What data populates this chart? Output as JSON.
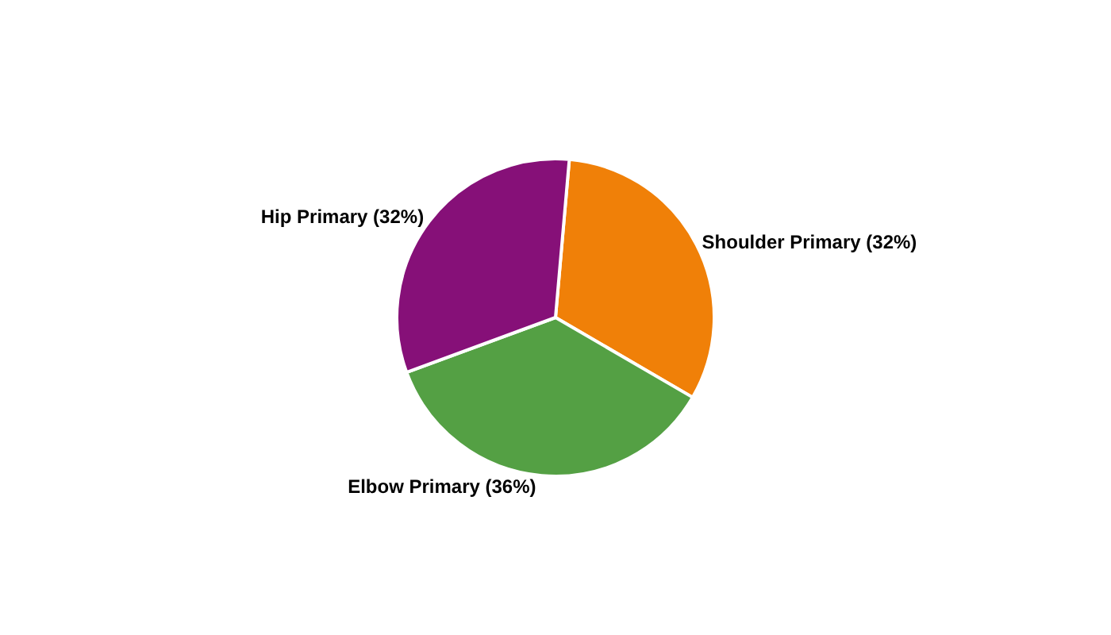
{
  "chart_data": {
    "type": "pie",
    "categories": [
      "Shoulder Primary",
      "Elbow Primary",
      "Hip Primary"
    ],
    "values": [
      32,
      36,
      32
    ],
    "value_labels": [
      "(32%)",
      "(36%)",
      "(32%)"
    ],
    "colors": [
      "#f08008",
      "#54a044",
      "#861078"
    ],
    "legend": false
  }
}
